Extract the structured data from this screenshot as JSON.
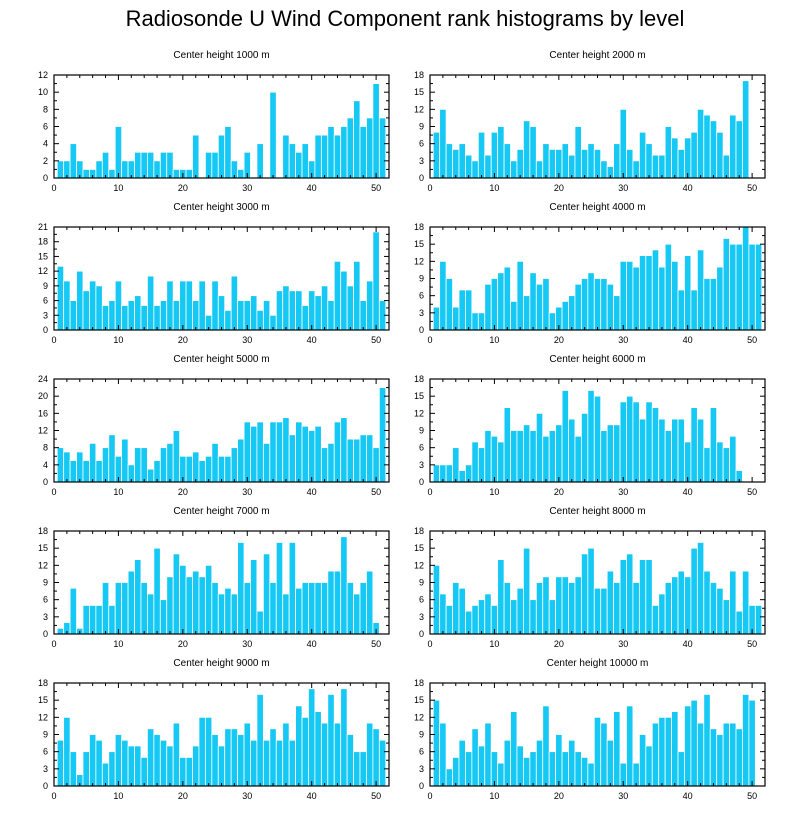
{
  "figure": {
    "title": "Radiosonde U Wind Component rank histograms by level"
  },
  "style": {
    "bar_color": "#16c8f4",
    "bar_outline": "#ffffff",
    "axis_color": "#000000"
  },
  "chart_data": [
    {
      "type": "bar",
      "title": "Center height 1000 m",
      "xlim": [
        0,
        52
      ],
      "ylim": [
        0,
        12
      ],
      "xticks": [
        0,
        10,
        20,
        30,
        40,
        50
      ],
      "yticks": [
        0,
        2,
        4,
        6,
        8,
        10,
        12
      ],
      "x": [
        1,
        2,
        3,
        4,
        5,
        6,
        7,
        8,
        9,
        10,
        11,
        12,
        13,
        14,
        15,
        16,
        17,
        18,
        19,
        20,
        21,
        22,
        23,
        24,
        25,
        26,
        27,
        28,
        29,
        30,
        31,
        32,
        33,
        34,
        35,
        36,
        37,
        38,
        39,
        40,
        41,
        42,
        43,
        44,
        45,
        46,
        47,
        48,
        49,
        50,
        51
      ],
      "values": [
        2,
        2,
        4,
        2,
        1,
        1,
        2,
        3,
        1,
        6,
        2,
        2,
        3,
        3,
        3,
        2,
        3,
        3,
        1,
        1,
        1,
        5,
        0,
        3,
        3,
        5,
        6,
        2,
        1,
        3,
        0,
        4,
        0,
        10,
        0,
        5,
        4,
        3,
        4,
        2,
        5,
        5,
        6,
        5,
        6,
        7,
        9,
        6,
        7,
        11,
        7
      ]
    },
    {
      "type": "bar",
      "title": "Center height 2000 m",
      "xlim": [
        0,
        52
      ],
      "ylim": [
        0,
        18
      ],
      "xticks": [
        0,
        10,
        20,
        30,
        40,
        50
      ],
      "yticks": [
        0,
        3,
        6,
        9,
        12,
        15,
        18
      ],
      "x": [
        1,
        2,
        3,
        4,
        5,
        6,
        7,
        8,
        9,
        10,
        11,
        12,
        13,
        14,
        15,
        16,
        17,
        18,
        19,
        20,
        21,
        22,
        23,
        24,
        25,
        26,
        27,
        28,
        29,
        30,
        31,
        32,
        33,
        34,
        35,
        36,
        37,
        38,
        39,
        40,
        41,
        42,
        43,
        44,
        45,
        46,
        47,
        48,
        49,
        50,
        51
      ],
      "values": [
        8,
        12,
        6,
        5,
        6,
        4,
        3,
        8,
        4,
        8,
        9,
        6,
        3,
        5,
        10,
        9,
        3,
        6,
        5,
        5,
        6,
        4,
        9,
        5,
        6,
        5,
        3,
        2,
        6,
        12,
        5,
        3,
        8,
        6,
        4,
        4,
        9,
        7,
        5,
        7,
        8,
        12,
        11,
        10,
        8,
        4,
        11,
        10,
        17,
        0,
        0
      ]
    },
    {
      "type": "bar",
      "title": "Center height 3000 m",
      "xlim": [
        0,
        52
      ],
      "ylim": [
        0,
        21
      ],
      "xticks": [
        0,
        10,
        20,
        30,
        40,
        50
      ],
      "yticks": [
        0,
        3,
        6,
        9,
        12,
        15,
        18,
        21
      ],
      "x": [
        1,
        2,
        3,
        4,
        5,
        6,
        7,
        8,
        9,
        10,
        11,
        12,
        13,
        14,
        15,
        16,
        17,
        18,
        19,
        20,
        21,
        22,
        23,
        24,
        25,
        26,
        27,
        28,
        29,
        30,
        31,
        32,
        33,
        34,
        35,
        36,
        37,
        38,
        39,
        40,
        41,
        42,
        43,
        44,
        45,
        46,
        47,
        48,
        49,
        50,
        51
      ],
      "values": [
        13,
        10,
        6,
        12,
        8,
        10,
        9,
        5,
        6,
        10,
        5,
        6,
        7,
        5,
        11,
        5,
        6,
        10,
        6,
        10,
        10,
        6,
        10,
        3,
        10,
        7,
        4,
        11,
        6,
        6,
        7,
        4,
        6,
        3,
        8,
        9,
        8,
        8,
        5,
        8,
        7,
        9,
        6,
        14,
        12,
        9,
        14,
        6,
        10,
        20,
        6
      ]
    },
    {
      "type": "bar",
      "title": "Center height 4000 m",
      "xlim": [
        0,
        52
      ],
      "ylim": [
        0,
        18
      ],
      "xticks": [
        0,
        10,
        20,
        30,
        40,
        50
      ],
      "yticks": [
        0,
        3,
        6,
        9,
        12,
        15,
        18
      ],
      "x": [
        1,
        2,
        3,
        4,
        5,
        6,
        7,
        8,
        9,
        10,
        11,
        12,
        13,
        14,
        15,
        16,
        17,
        18,
        19,
        20,
        21,
        22,
        23,
        24,
        25,
        26,
        27,
        28,
        29,
        30,
        31,
        32,
        33,
        34,
        35,
        36,
        37,
        38,
        39,
        40,
        41,
        42,
        43,
        44,
        45,
        46,
        47,
        48,
        49,
        50,
        51
      ],
      "values": [
        4,
        12,
        9,
        4,
        7,
        7,
        3,
        3,
        8,
        9,
        10,
        11,
        5,
        12,
        6,
        10,
        8,
        9,
        3,
        4,
        5,
        6,
        8,
        9,
        10,
        9,
        9,
        8,
        6,
        12,
        12,
        11,
        13,
        13,
        14,
        11,
        15,
        12,
        7,
        13,
        7,
        14,
        9,
        9,
        11,
        16,
        15,
        15,
        18,
        15,
        15
      ]
    },
    {
      "type": "bar",
      "title": "Center height 5000 m",
      "xlim": [
        0,
        52
      ],
      "ylim": [
        0,
        24
      ],
      "xticks": [
        0,
        10,
        20,
        30,
        40,
        50
      ],
      "yticks": [
        0,
        4,
        8,
        12,
        16,
        20,
        24
      ],
      "x": [
        1,
        2,
        3,
        4,
        5,
        6,
        7,
        8,
        9,
        10,
        11,
        12,
        13,
        14,
        15,
        16,
        17,
        18,
        19,
        20,
        21,
        22,
        23,
        24,
        25,
        26,
        27,
        28,
        29,
        30,
        31,
        32,
        33,
        34,
        35,
        36,
        37,
        38,
        39,
        40,
        41,
        42,
        43,
        44,
        45,
        46,
        47,
        48,
        49,
        50,
        51
      ],
      "values": [
        8,
        7,
        5,
        7,
        5,
        9,
        5,
        8,
        11,
        6,
        10,
        4,
        8,
        8,
        3,
        5,
        8,
        9,
        12,
        6,
        6,
        7,
        5,
        6,
        9,
        6,
        6,
        8,
        10,
        14,
        13,
        14,
        9,
        14,
        14,
        15,
        11,
        14,
        13,
        12,
        13,
        8,
        9,
        14,
        15,
        10,
        10,
        11,
        11,
        8,
        22
      ]
    },
    {
      "type": "bar",
      "title": "Center height 6000 m",
      "xlim": [
        0,
        52
      ],
      "ylim": [
        0,
        18
      ],
      "xticks": [
        0,
        10,
        20,
        30,
        40,
        50
      ],
      "yticks": [
        0,
        3,
        6,
        9,
        12,
        15,
        18
      ],
      "x": [
        1,
        2,
        3,
        4,
        5,
        6,
        7,
        8,
        9,
        10,
        11,
        12,
        13,
        14,
        15,
        16,
        17,
        18,
        19,
        20,
        21,
        22,
        23,
        24,
        25,
        26,
        27,
        28,
        29,
        30,
        31,
        32,
        33,
        34,
        35,
        36,
        37,
        38,
        39,
        40,
        41,
        42,
        43,
        44,
        45,
        46,
        47,
        48,
        49,
        50,
        51
      ],
      "values": [
        3,
        3,
        3,
        6,
        2,
        3,
        7,
        6,
        9,
        8,
        7,
        13,
        9,
        9,
        10,
        9,
        12,
        8,
        9,
        10,
        16,
        11,
        8,
        12,
        16,
        15,
        9,
        10,
        10,
        14,
        15,
        14,
        11,
        14,
        13,
        11,
        9,
        11,
        11,
        7,
        13,
        11,
        6,
        13,
        7,
        6,
        8,
        2,
        0,
        0,
        0
      ]
    },
    {
      "type": "bar",
      "title": "Center height 7000 m",
      "xlim": [
        0,
        52
      ],
      "ylim": [
        0,
        18
      ],
      "xticks": [
        0,
        10,
        20,
        30,
        40,
        50
      ],
      "yticks": [
        0,
        3,
        6,
        9,
        12,
        15,
        18
      ],
      "x": [
        1,
        2,
        3,
        4,
        5,
        6,
        7,
        8,
        9,
        10,
        11,
        12,
        13,
        14,
        15,
        16,
        17,
        18,
        19,
        20,
        21,
        22,
        23,
        24,
        25,
        26,
        27,
        28,
        29,
        30,
        31,
        32,
        33,
        34,
        35,
        36,
        37,
        38,
        39,
        40,
        41,
        42,
        43,
        44,
        45,
        46,
        47,
        48,
        49,
        50,
        51
      ],
      "values": [
        1,
        2,
        8,
        1,
        5,
        5,
        5,
        9,
        5,
        9,
        9,
        11,
        13,
        9,
        7,
        15,
        6,
        10,
        14,
        12,
        10,
        11,
        10,
        12,
        9,
        7,
        8,
        7,
        16,
        9,
        13,
        4,
        14,
        9,
        16,
        7,
        16,
        8,
        9,
        9,
        9,
        9,
        11,
        11,
        17,
        9,
        7,
        9,
        11,
        2,
        0
      ]
    },
    {
      "type": "bar",
      "title": "Center height 8000 m",
      "xlim": [
        0,
        52
      ],
      "ylim": [
        0,
        18
      ],
      "xticks": [
        0,
        10,
        20,
        30,
        40,
        50
      ],
      "yticks": [
        0,
        3,
        6,
        9,
        12,
        15,
        18
      ],
      "x": [
        1,
        2,
        3,
        4,
        5,
        6,
        7,
        8,
        9,
        10,
        11,
        12,
        13,
        14,
        15,
        16,
        17,
        18,
        19,
        20,
        21,
        22,
        23,
        24,
        25,
        26,
        27,
        28,
        29,
        30,
        31,
        32,
        33,
        34,
        35,
        36,
        37,
        38,
        39,
        40,
        41,
        42,
        43,
        44,
        45,
        46,
        47,
        48,
        49,
        50,
        51
      ],
      "values": [
        12,
        7,
        5,
        9,
        8,
        4,
        5,
        6,
        7,
        5,
        13,
        9,
        6,
        8,
        15,
        6,
        9,
        10,
        6,
        10,
        10,
        9,
        10,
        14,
        15,
        8,
        8,
        11,
        9,
        13,
        14,
        9,
        13,
        13,
        5,
        7,
        9,
        10,
        11,
        10,
        15,
        16,
        11,
        9,
        8,
        6,
        11,
        4,
        11,
        5,
        5
      ]
    },
    {
      "type": "bar",
      "title": "Center height 9000 m",
      "xlim": [
        0,
        52
      ],
      "ylim": [
        0,
        18
      ],
      "xticks": [
        0,
        10,
        20,
        30,
        40,
        50
      ],
      "yticks": [
        0,
        3,
        6,
        9,
        12,
        15,
        18
      ],
      "x": [
        1,
        2,
        3,
        4,
        5,
        6,
        7,
        8,
        9,
        10,
        11,
        12,
        13,
        14,
        15,
        16,
        17,
        18,
        19,
        20,
        21,
        22,
        23,
        24,
        25,
        26,
        27,
        28,
        29,
        30,
        31,
        32,
        33,
        34,
        35,
        36,
        37,
        38,
        39,
        40,
        41,
        42,
        43,
        44,
        45,
        46,
        47,
        48,
        49,
        50,
        51
      ],
      "values": [
        8,
        12,
        6,
        2,
        6,
        9,
        8,
        4,
        6,
        9,
        8,
        7,
        7,
        5,
        10,
        9,
        8,
        7,
        11,
        5,
        5,
        7,
        12,
        12,
        9,
        7,
        10,
        10,
        9,
        11,
        8,
        16,
        8,
        10,
        8,
        11,
        8,
        14,
        12,
        17,
        13,
        11,
        16,
        11,
        17,
        9,
        6,
        6,
        11,
        10,
        8
      ]
    },
    {
      "type": "bar",
      "title": "Center height 10000 m",
      "xlim": [
        0,
        52
      ],
      "ylim": [
        0,
        18
      ],
      "xticks": [
        0,
        10,
        20,
        30,
        40,
        50
      ],
      "yticks": [
        0,
        3,
        6,
        9,
        12,
        15,
        18
      ],
      "x": [
        1,
        2,
        3,
        4,
        5,
        6,
        7,
        8,
        9,
        10,
        11,
        12,
        13,
        14,
        15,
        16,
        17,
        18,
        19,
        20,
        21,
        22,
        23,
        24,
        25,
        26,
        27,
        28,
        29,
        30,
        31,
        32,
        33,
        34,
        35,
        36,
        37,
        38,
        39,
        40,
        41,
        42,
        43,
        44,
        45,
        46,
        47,
        48,
        49,
        50,
        51
      ],
      "values": [
        15,
        11,
        3,
        5,
        8,
        6,
        10,
        7,
        11,
        6,
        4,
        8,
        13,
        7,
        5,
        6,
        8,
        14,
        6,
        9,
        6,
        8,
        6,
        5,
        4,
        12,
        11,
        8,
        13,
        4,
        14,
        4,
        9,
        7,
        11,
        12,
        12,
        13,
        6,
        14,
        15,
        11,
        16,
        10,
        9,
        11,
        11,
        10,
        16,
        15,
        0
      ]
    }
  ]
}
